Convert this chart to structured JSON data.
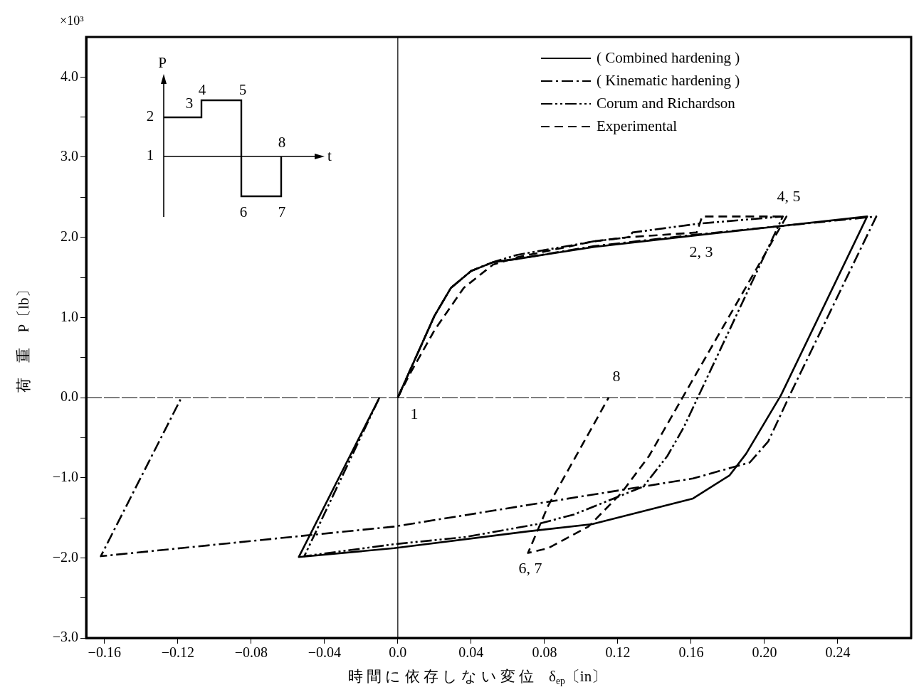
{
  "chart_data": {
    "type": "line",
    "xlabel": "時 間 に 依 存 し な い 変 位　δ$_{ep}$〔in〕",
    "ylabel": "荷　重　P〔lb〕",
    "xlim": [
      -0.17,
      0.28
    ],
    "ylim": [
      -3.0,
      4.5
    ],
    "xticks": [
      {
        "value": -0.16,
        "label": "−0.16"
      },
      {
        "value": -0.12,
        "label": "−0.12"
      },
      {
        "value": -0.08,
        "label": "−0.08"
      },
      {
        "value": -0.04,
        "label": "−0.04"
      },
      {
        "value": 0,
        "label": "0.0"
      },
      0.04,
      0.08,
      0.12,
      0.16,
      {
        "value": 0.2,
        "label": "0.20"
      },
      0.24
    ],
    "yticks": [
      {
        "value": -3,
        "label": "−3.0"
      },
      {
        "value": -2.5,
        "label": null
      },
      {
        "value": -2,
        "label": "−2.0"
      },
      {
        "value": -1.5,
        "label": null
      },
      {
        "value": -1,
        "label": "−1.0"
      },
      {
        "value": -0.5,
        "label": null
      },
      {
        "value": 0,
        "label": "0.0"
      },
      {
        "value": 0.5,
        "label": null
      },
      {
        "value": 1,
        "label": "1.0"
      },
      {
        "value": 1.5,
        "label": null
      },
      {
        "value": 2,
        "label": "2.0"
      },
      {
        "value": 2.5,
        "label": null
      },
      {
        "value": 3,
        "label": "3.0"
      },
      {
        "value": 3.5,
        "label": null
      },
      {
        "value": 4,
        "label": "4.0"
      }
    ],
    "grid": false,
    "legend": "top right",
    "ref_lines": [
      {
        "axis": "x",
        "value": 0,
        "color": "#000000"
      },
      {
        "axis": "y",
        "value": 0,
        "color": "#000000",
        "line_style": "dashed"
      }
    ],
    "series": [
      {
        "name": "( Combined hardening )",
        "color": "#000000",
        "line_style": "solid",
        "x": [
          0,
          0.02,
          0.029,
          0.04,
          0.052,
          0.065,
          0.107,
          0.161,
          0.256,
          0.209,
          0.19,
          0.181,
          0.161,
          0.106,
          0.071,
          -0.002,
          -0.054,
          -0.01
        ],
        "values": [
          0,
          1.02,
          1.37,
          1.58,
          1.69,
          1.73,
          1.88,
          2.02,
          2.26,
          0.03,
          -0.7,
          -0.97,
          -1.26,
          -1.58,
          -1.67,
          -1.88,
          -1.99,
          0
        ]
      },
      {
        "name": "( Kinematic hardening )",
        "color": "#000000",
        "line_style": "dashdot",
        "x": [
          0,
          0.02,
          0.029,
          0.04,
          0.052,
          0.065,
          0.107,
          0.161,
          0.261,
          0.214,
          0.202,
          0.192,
          0.161,
          -0.002,
          -0.162,
          -0.118
        ],
        "values": [
          0,
          1.02,
          1.37,
          1.58,
          1.69,
          1.73,
          1.89,
          2.03,
          2.26,
          0.04,
          -0.55,
          -0.81,
          -1.01,
          -1.61,
          -1.98,
          0
        ]
      },
      {
        "name": "Corum and Richardson",
        "color": "#000000",
        "line_style": "dashdotdot",
        "x": [
          0,
          0.02,
          0.029,
          0.04,
          0.052,
          0.065,
          0.107,
          0.126,
          0.128,
          0.164,
          0.21,
          0.156,
          0.147,
          0.134,
          0.121,
          0.096,
          0.076,
          0.037,
          -0.002,
          -0.051,
          -0.01
        ],
        "values": [
          0,
          1.02,
          1.37,
          1.58,
          1.69,
          1.78,
          1.95,
          2.0,
          2.06,
          2.17,
          2.26,
          -0.37,
          -0.73,
          -1.11,
          -1.23,
          -1.46,
          -1.58,
          -1.74,
          -1.83,
          -1.98,
          0
        ]
      },
      {
        "name": "Experimental",
        "color": "#000000",
        "line_style": "dashed",
        "x": [
          0,
          0.006,
          0.02,
          0.036,
          0.052,
          0.065,
          0.107,
          0.125,
          0.163,
          0.166,
          0.212,
          0.137,
          0.122,
          0.104,
          0.082,
          0.071,
          0.082,
          0.106,
          0.115
        ],
        "values": [
          0,
          0.27,
          0.84,
          1.37,
          1.66,
          1.75,
          1.95,
          2.0,
          2.06,
          2.26,
          2.26,
          -0.73,
          -1.19,
          -1.61,
          -1.88,
          -1.94,
          -1.35,
          -0.37,
          0
        ]
      }
    ],
    "annotations": [
      "1",
      "2, 3",
      "4, 5",
      "6, 7",
      "8",
      "×10³",
      "P",
      "t",
      "1",
      "2",
      "3",
      "4",
      "5",
      "6",
      "7",
      "8"
    ]
  }
}
